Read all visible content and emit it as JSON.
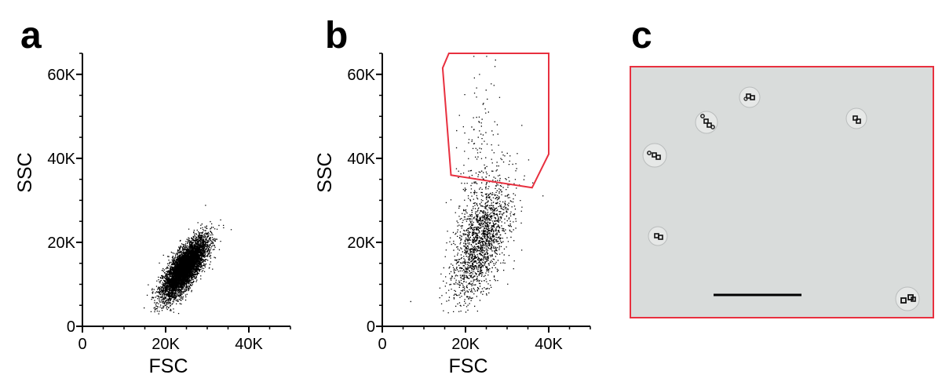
{
  "panels": {
    "a": "a",
    "b": "b",
    "c": "c"
  },
  "colors": {
    "dots": "#000000",
    "gate": "#e8303f",
    "micro_bg": "#d9dcdb",
    "scale_bar": "#000000"
  },
  "chart_data": [
    {
      "id": "a",
      "type": "scatter",
      "title": "",
      "xlabel": "FSC",
      "ylabel": "SSC",
      "xlim": [
        0,
        50000
      ],
      "ylim": [
        0,
        65000
      ],
      "xticks": [
        0,
        20000,
        40000
      ],
      "xtick_labels": [
        "0",
        "20K",
        "40K"
      ],
      "yticks": [
        0,
        20000,
        40000,
        60000
      ],
      "ytick_labels": [
        "0",
        "20K",
        "40K",
        "60K"
      ],
      "population": {
        "center_fsc": 24500,
        "center_ssc": 14000,
        "sd_fsc": 2600,
        "sd_ssc": 3500,
        "correlation": 0.75,
        "events": 6000
      }
    },
    {
      "id": "b",
      "type": "scatter",
      "title": "",
      "xlabel": "FSC",
      "ylabel": "SSC",
      "xlim": [
        0,
        50000
      ],
      "ylim": [
        0,
        65000
      ],
      "xticks": [
        0,
        20000,
        40000
      ],
      "xtick_labels": [
        "0",
        "20K",
        "40K"
      ],
      "yticks": [
        0,
        20000,
        40000,
        60000
      ],
      "ytick_labels": [
        "0",
        "20K",
        "40K",
        "60K"
      ],
      "population": {
        "center_fsc": 23500,
        "center_ssc": 20000,
        "sd_fsc": 3500,
        "sd_ssc": 7000,
        "correlation": 0.55,
        "events": 9000
      },
      "gate_polygon": [
        [
          14500,
          61500
        ],
        [
          16000,
          65000
        ],
        [
          40000,
          65000
        ],
        [
          40000,
          41000
        ],
        [
          36000,
          33000
        ],
        [
          16500,
          36000
        ]
      ]
    }
  ]
}
